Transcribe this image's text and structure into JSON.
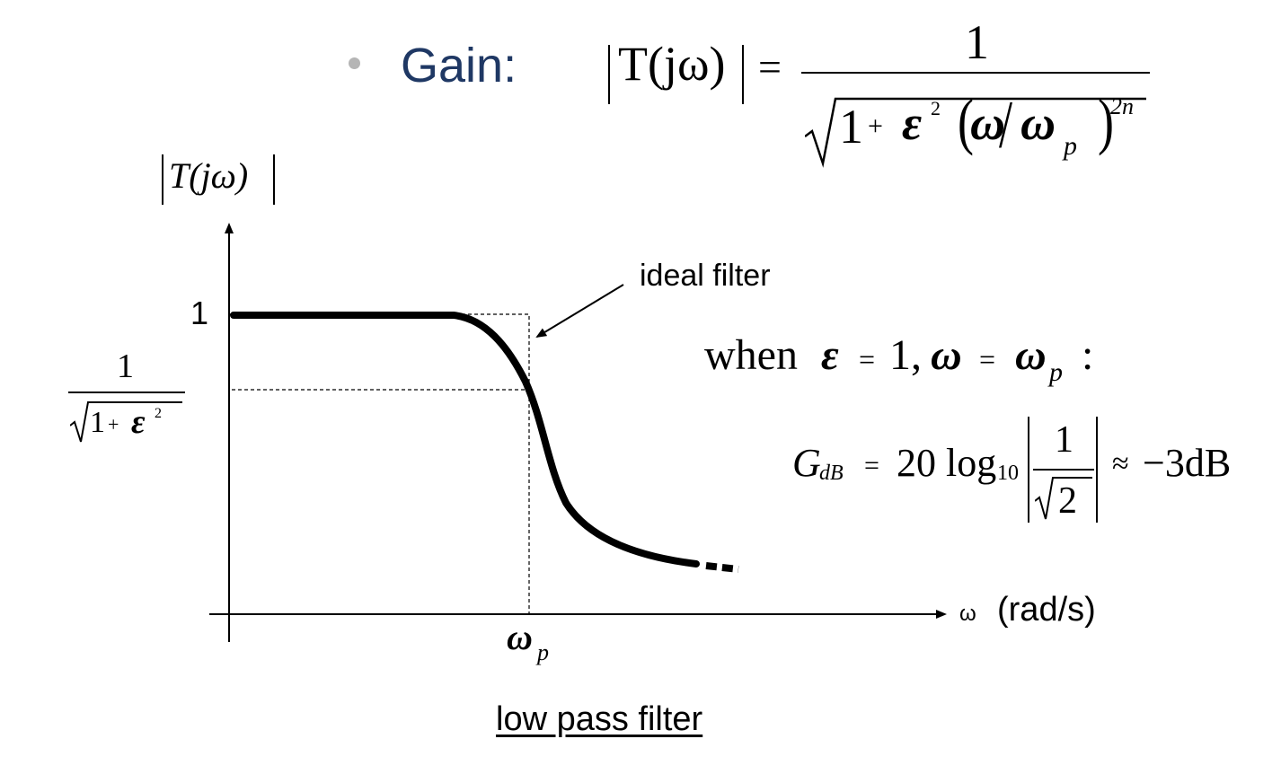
{
  "header": {
    "bullet_label": "Gain:",
    "formula": {
      "lhs": "T(jω)",
      "equals": "=",
      "numerator": "1",
      "denominator": {
        "one": "1",
        "plus": "+",
        "epsilon": "ε",
        "eps_exp": "2",
        "omega": "ω",
        "slash": "/",
        "omega_p": "ω",
        "p_sub": "p",
        "exp_2n": "2n"
      }
    }
  },
  "plot": {
    "y_axis_label": "T(jω)",
    "y_tick_1": "1",
    "y_tick_frac": {
      "numerator": "1",
      "one": "1",
      "plus": "+",
      "epsilon": "ε",
      "exp": "2"
    },
    "x_tick": {
      "omega": "ω",
      "sub": "p"
    },
    "x_axis_label": {
      "omega": "ω",
      "unit": "(rad/s)"
    },
    "annotation": "ideal filter"
  },
  "condition": {
    "text_when": "when",
    "epsilon": "ε",
    "eq1": "=",
    "one_comma": "1,",
    "omega": "ω",
    "eq2": "=",
    "omega_p": "ω",
    "p_sub": "p",
    "colon": ":"
  },
  "gdb": {
    "G": "G",
    "sub": "dB",
    "eq": "=",
    "twenty_log": "20 log",
    "log_sub": "10",
    "numerator": "1",
    "root_arg": "2",
    "approx": "≈",
    "result": "−3dB"
  },
  "caption": "low pass filter"
}
